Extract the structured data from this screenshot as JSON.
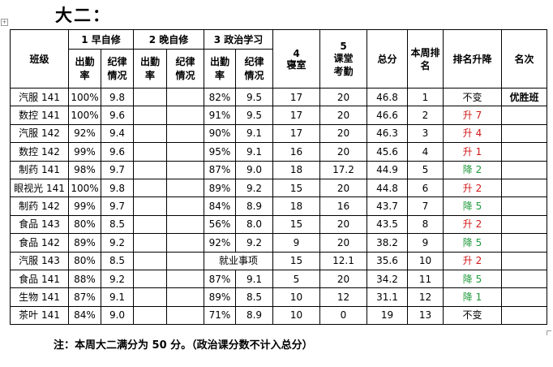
{
  "title": "大二：",
  "anchor_icon": "move-handle-icon",
  "headers": {
    "class": "班级",
    "g1": "1 早自修",
    "g2": "2 晚自修",
    "g3": "3 政治学习",
    "dorm_num": "4",
    "dorm": "寝室",
    "classroom_num": "5",
    "classroom": "课堂考勤",
    "total": "总分",
    "week_rank": "本周排名",
    "change": "排名升降",
    "honor": "名次",
    "attendance": "出勤率",
    "discipline": "纪律情况"
  },
  "rows": [
    {
      "cls": "汽服 141",
      "a1": "100%",
      "d1": "9.8",
      "a2": "",
      "d2": "",
      "a3": "82%",
      "d3": "9.5",
      "dorm": "17",
      "classroom": "20",
      "total": "46.8",
      "rank": "1",
      "change": "不变",
      "honor": "优胜班"
    },
    {
      "cls": "数控 141",
      "a1": "100%",
      "d1": "9.6",
      "a2": "",
      "d2": "",
      "a3": "91%",
      "d3": "9.5",
      "dorm": "17",
      "classroom": "20",
      "total": "46.6",
      "rank": "2",
      "change": "升 7",
      "honor": ""
    },
    {
      "cls": "汽服 142",
      "a1": "92%",
      "d1": "9.4",
      "a2": "",
      "d2": "",
      "a3": "90%",
      "d3": "9.1",
      "dorm": "17",
      "classroom": "20",
      "total": "46.3",
      "rank": "3",
      "change": "升 4",
      "honor": ""
    },
    {
      "cls": "数控 142",
      "a1": "99%",
      "d1": "9.6",
      "a2": "",
      "d2": "",
      "a3": "95%",
      "d3": "9.1",
      "dorm": "16",
      "classroom": "20",
      "total": "45.6",
      "rank": "4",
      "change": "升 1",
      "honor": ""
    },
    {
      "cls": "制药 141",
      "a1": "98%",
      "d1": "9.7",
      "a2": "",
      "d2": "",
      "a3": "87%",
      "d3": "9.0",
      "dorm": "18",
      "classroom": "17.2",
      "total": "44.9",
      "rank": "5",
      "change": "降 2",
      "honor": ""
    },
    {
      "cls": "眼视光 141",
      "a1": "100%",
      "d1": "9.8",
      "a2": "",
      "d2": "",
      "a3": "89%",
      "d3": "9.2",
      "dorm": "15",
      "classroom": "20",
      "total": "44.8",
      "rank": "6",
      "change": "升 2",
      "honor": ""
    },
    {
      "cls": "制药 142",
      "a1": "99%",
      "d1": "9.7",
      "a2": "",
      "d2": "",
      "a3": "84%",
      "d3": "8.9",
      "dorm": "18",
      "classroom": "16",
      "total": "43.7",
      "rank": "7",
      "change": "降 5",
      "honor": ""
    },
    {
      "cls": "食品 143",
      "a1": "80%",
      "d1": "8.5",
      "a2": "",
      "d2": "",
      "a3": "56%",
      "d3": "8.0",
      "dorm": "15",
      "classroom": "20",
      "total": "43.5",
      "rank": "8",
      "change": "升 2",
      "honor": ""
    },
    {
      "cls": "食品 142",
      "a1": "89%",
      "d1": "9.2",
      "a2": "",
      "d2": "",
      "a3": "92%",
      "d3": "9.2",
      "dorm": "9",
      "classroom": "20",
      "total": "38.2",
      "rank": "9",
      "change": "降 5",
      "honor": ""
    },
    {
      "cls": "汽服 143",
      "a1": "80%",
      "d1": "8.5",
      "a2": "",
      "d2": "",
      "a3": "就业事项",
      "d3": "",
      "merged": true,
      "dorm": "15",
      "classroom": "12.1",
      "total": "35.6",
      "rank": "10",
      "change": "升 2",
      "honor": ""
    },
    {
      "cls": "食品 141",
      "a1": "88%",
      "d1": "9.2",
      "a2": "",
      "d2": "",
      "a3": "87%",
      "d3": "9.1",
      "dorm": "5",
      "classroom": "20",
      "total": "34.2",
      "rank": "11",
      "change": "降 5",
      "honor": ""
    },
    {
      "cls": "生物 141",
      "a1": "87%",
      "d1": "9.1",
      "a2": "",
      "d2": "",
      "a3": "89%",
      "d3": "8.5",
      "dorm": "10",
      "classroom": "12",
      "total": "31.1",
      "rank": "12",
      "change": "降 1",
      "honor": ""
    },
    {
      "cls": "茶叶 141",
      "a1": "84%",
      "d1": "9.0",
      "a2": "",
      "d2": "",
      "a3": "71%",
      "d3": "8.9",
      "dorm": "10",
      "classroom": "0",
      "total": "19",
      "rank": "13",
      "change": "不变",
      "honor": ""
    }
  ],
  "colors": {
    "up": "#d01818",
    "down": "#1f9a3c",
    "same": "#000000"
  },
  "note": "注：本周大二满分为 50 分。（政治课分数不计入总分）"
}
